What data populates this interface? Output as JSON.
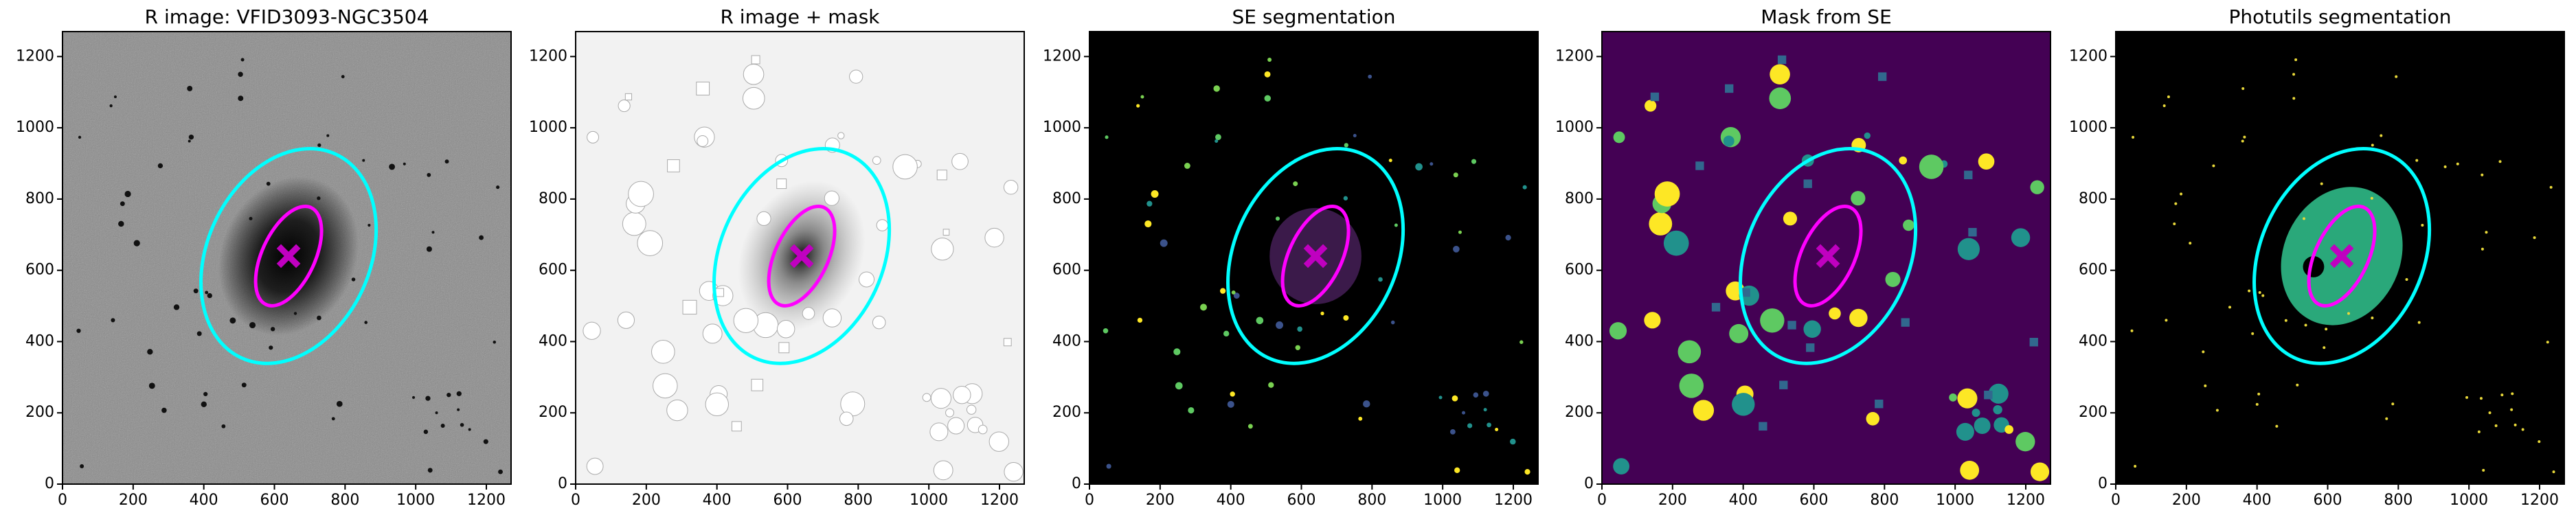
{
  "chart_data": [
    {
      "type": "image",
      "title": "R image: VFID3093-NGC3504",
      "background": "#8a8a8a",
      "xlim": [
        0,
        1270
      ],
      "ylim": [
        0,
        1270
      ],
      "xticks": [
        0,
        200,
        400,
        600,
        800,
        1000,
        1200
      ],
      "yticks": [
        0,
        200,
        400,
        600,
        800,
        1000,
        1200
      ],
      "ellipses": [
        {
          "cx": 640,
          "cy": 640,
          "rx": 230,
          "ry": 315,
          "angle": -25,
          "color": "#00ffff"
        },
        {
          "cx": 640,
          "cy": 640,
          "rx": 75,
          "ry": 150,
          "angle": -25,
          "color": "#ff00ff"
        }
      ],
      "marker": {
        "x": 640,
        "y": 640,
        "color": "#c000c0"
      }
    },
    {
      "type": "image",
      "title": "R image + mask",
      "background": "#f2f2f2",
      "xlim": [
        0,
        1270
      ],
      "ylim": [
        0,
        1270
      ],
      "xticks": [
        0,
        200,
        400,
        600,
        800,
        1000,
        1200
      ],
      "yticks": [
        0,
        200,
        400,
        600,
        800,
        1000,
        1200
      ],
      "ellipses": [
        {
          "cx": 640,
          "cy": 640,
          "rx": 230,
          "ry": 315,
          "angle": -25,
          "color": "#00ffff"
        },
        {
          "cx": 640,
          "cy": 640,
          "rx": 75,
          "ry": 150,
          "angle": -25,
          "color": "#ff00ff"
        }
      ],
      "marker": {
        "x": 640,
        "y": 640,
        "color": "#c000c0"
      }
    },
    {
      "type": "image",
      "title": "SE segmentation",
      "background": "#000000",
      "xlim": [
        0,
        1270
      ],
      "ylim": [
        0,
        1270
      ],
      "xticks": [
        0,
        200,
        400,
        600,
        800,
        1000,
        1200
      ],
      "yticks": [
        0,
        200,
        400,
        600,
        800,
        1000,
        1200
      ],
      "ellipses": [
        {
          "cx": 640,
          "cy": 640,
          "rx": 230,
          "ry": 315,
          "angle": -25,
          "color": "#00ffff"
        },
        {
          "cx": 640,
          "cy": 640,
          "rx": 75,
          "ry": 150,
          "angle": -25,
          "color": "#ff00ff"
        }
      ],
      "marker": {
        "x": 640,
        "y": 640,
        "color": "#c000c0"
      }
    },
    {
      "type": "image",
      "title": "Mask from SE",
      "background": "#440154",
      "xlim": [
        0,
        1270
      ],
      "ylim": [
        0,
        1270
      ],
      "xticks": [
        0,
        200,
        400,
        600,
        800,
        1000,
        1200
      ],
      "yticks": [
        0,
        200,
        400,
        600,
        800,
        1000,
        1200
      ],
      "ellipses": [
        {
          "cx": 640,
          "cy": 640,
          "rx": 230,
          "ry": 315,
          "angle": -25,
          "color": "#00ffff"
        },
        {
          "cx": 640,
          "cy": 640,
          "rx": 75,
          "ry": 150,
          "angle": -25,
          "color": "#ff00ff"
        }
      ],
      "marker": {
        "x": 640,
        "y": 640,
        "color": "#c000c0"
      }
    },
    {
      "type": "image",
      "title": "Photutils segmentation",
      "background": "#000000",
      "xlim": [
        0,
        1270
      ],
      "ylim": [
        0,
        1270
      ],
      "xticks": [
        0,
        200,
        400,
        600,
        800,
        1000,
        1200
      ],
      "yticks": [
        0,
        200,
        400,
        600,
        800,
        1000,
        1200
      ],
      "ellipses": [
        {
          "cx": 640,
          "cy": 640,
          "rx": 230,
          "ry": 315,
          "angle": -25,
          "color": "#00ffff"
        },
        {
          "cx": 640,
          "cy": 640,
          "rx": 75,
          "ry": 150,
          "angle": -25,
          "color": "#ff00ff"
        }
      ],
      "marker": {
        "x": 640,
        "y": 640,
        "color": "#c000c0"
      }
    }
  ]
}
